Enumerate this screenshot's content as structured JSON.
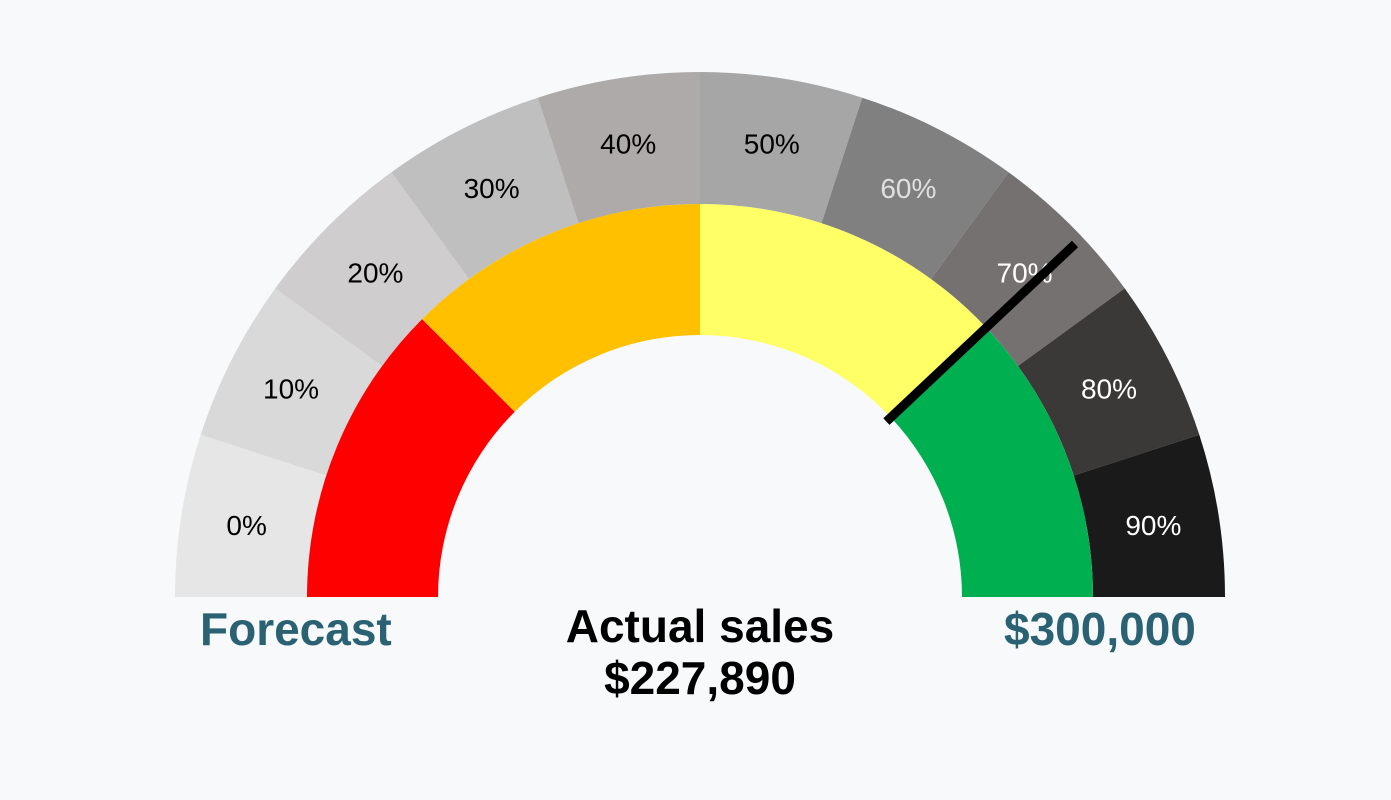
{
  "chart_data": {
    "type": "gauge",
    "min": 0,
    "max": 300000,
    "outer_ring": {
      "segments": [
        {
          "label": "0%",
          "color": "#e6e6e6",
          "text_color": "#000000"
        },
        {
          "label": "10%",
          "color": "#d9d9d9",
          "text_color": "#000000"
        },
        {
          "label": "20%",
          "color": "#cfcdcd",
          "text_color": "#000000"
        },
        {
          "label": "30%",
          "color": "#bfbfbf",
          "text_color": "#000000"
        },
        {
          "label": "40%",
          "color": "#aeaaaa",
          "text_color": "#000000"
        },
        {
          "label": "50%",
          "color": "#a6a6a6",
          "text_color": "#000000"
        },
        {
          "label": "60%",
          "color": "#808080",
          "text_color": "#e0e0e0"
        },
        {
          "label": "70%",
          "color": "#767171",
          "text_color": "#ffffff"
        },
        {
          "label": "80%",
          "color": "#3b3838",
          "text_color": "#ffffff"
        },
        {
          "label": "90%",
          "color": "#1a1a1a",
          "text_color": "#ffffff"
        }
      ]
    },
    "inner_ring": {
      "bands": [
        {
          "from": 0,
          "to": 0.25,
          "color": "#ff0000"
        },
        {
          "from": 0.25,
          "to": 0.5,
          "color": "#ffc000"
        },
        {
          "from": 0.5,
          "to": 0.76,
          "color": "#ffff66"
        },
        {
          "from": 0.76,
          "to": 1.0,
          "color": "#00b050"
        }
      ]
    },
    "needle_value": 227890,
    "needle_color": "#000000"
  },
  "labels": {
    "forecast": "Forecast",
    "target": "$300,000",
    "actual_title": "Actual sales",
    "actual_value": "$227,890"
  }
}
